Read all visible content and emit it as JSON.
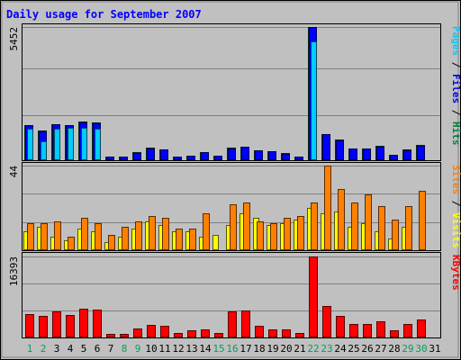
{
  "chart_data": {
    "type": "bar",
    "title": "Daily usage for September 2007",
    "days": [
      "1",
      "2",
      "3",
      "4",
      "5",
      "6",
      "7",
      "8",
      "9",
      "10",
      "11",
      "12",
      "13",
      "14",
      "15",
      "16",
      "17",
      "18",
      "19",
      "20",
      "21",
      "22",
      "23",
      "24",
      "25",
      "26",
      "27",
      "28",
      "29",
      "30",
      "31"
    ],
    "weekend_days": [
      "1",
      "2",
      "8",
      "9",
      "15",
      "16",
      "22",
      "23",
      "29",
      "30"
    ],
    "panels": [
      {
        "name": "pages-files-hits",
        "ymax_label": "5452",
        "ymax": 5452,
        "legend": [
          {
            "text": "Pages",
            "color": "#00ccff"
          },
          {
            "text": " / ",
            "color": "#000000"
          },
          {
            "text": "Files",
            "color": "#0000ff"
          },
          {
            "text": " / ",
            "color": "#000000"
          },
          {
            "text": "Hits",
            "color": "#008040"
          }
        ],
        "series": [
          {
            "name": "Hits",
            "color": "#008040",
            "values": [
              1450,
              1200,
              1490,
              1440,
              1580,
              1530,
              160,
              160,
              320,
              500,
              460,
              160,
              200,
              340,
              200,
              500,
              560,
              410,
              370,
              290,
              160,
              5452,
              1070,
              840,
              490,
              490,
              590,
              220,
              440,
              610,
              0
            ]
          },
          {
            "name": "Files",
            "color": "#0000ff",
            "values": [
              1430,
              1180,
              1470,
              1420,
              1560,
              1510,
              150,
              150,
              300,
              480,
              440,
              150,
              190,
              320,
              190,
              480,
              540,
              390,
              350,
              270,
              150,
              5452,
              1050,
              820,
              470,
              470,
              570,
              210,
              420,
              590,
              0
            ]
          },
          {
            "name": "Pages",
            "color": "#00ccff",
            "values": [
              1280,
              790,
              1290,
              1340,
              1330,
              1300,
              0,
              0,
              0,
              0,
              0,
              0,
              0,
              0,
              0,
              0,
              0,
              0,
              0,
              0,
              0,
              4880,
              0,
              0,
              0,
              0,
              0,
              0,
              0,
              0,
              0
            ]
          }
        ]
      },
      {
        "name": "visits-sites",
        "ymax_label": "44",
        "ymax": 44,
        "legend": [
          {
            "text": "Sites",
            "color": "#ff8000"
          },
          {
            "text": " / ",
            "color": "#000000"
          },
          {
            "text": "Visits",
            "color": "#ffff00"
          }
        ],
        "series": [
          {
            "name": "Visits",
            "color": "#ffff00",
            "values": [
              10,
              12,
              7,
              5,
              11,
              10,
              4,
              7,
              11,
              15,
              13,
              10,
              10,
              7,
              8,
              13,
              19,
              17,
              13,
              14,
              16,
              22,
              19,
              20,
              12,
              14,
              10,
              6,
              12,
              0,
              0
            ]
          },
          {
            "name": "Sites",
            "color": "#ff8000",
            "values": [
              14,
              14,
              15,
              7,
              17,
              14,
              8,
              12,
              15,
              18,
              17,
              11,
              11,
              19,
              0,
              24,
              25,
              15,
              14,
              17,
              18,
              25,
              44,
              32,
              25,
              29,
              23,
              16,
              23,
              31,
              0
            ]
          }
        ]
      },
      {
        "name": "kbytes",
        "ymax_label": "16393",
        "ymax": 16393,
        "legend": [
          {
            "text": "KBytes",
            "color": "#ff0000"
          }
        ],
        "series": [
          {
            "name": "KBytes",
            "color": "#ff0000",
            "values": [
              4800,
              4300,
              5300,
              4600,
              5900,
              5600,
              650,
              650,
              1900,
              2500,
              2300,
              850,
              1400,
              1550,
              900,
              5200,
              5500,
              2300,
              1700,
              1600,
              950,
              16393,
              6300,
              4300,
              2800,
              2800,
              3200,
              1400,
              2700,
              3700,
              0
            ]
          }
        ]
      }
    ]
  }
}
